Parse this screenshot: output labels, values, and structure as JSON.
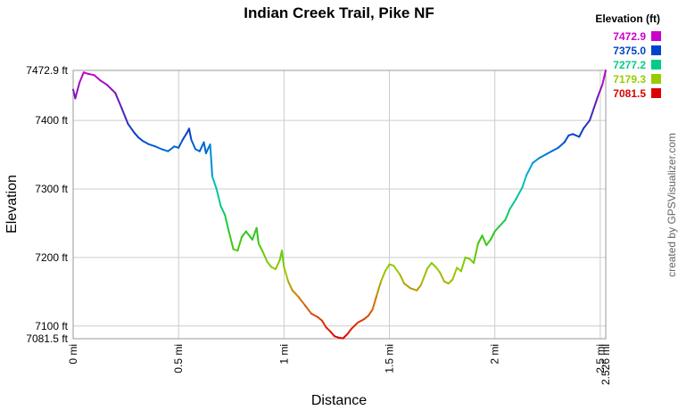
{
  "chart_data": {
    "type": "line",
    "title": "Indian Creek Trail, Pike NF",
    "xlabel": "Distance",
    "ylabel": "Elevation",
    "credit": "created by GPSVisualizer.com",
    "grid": true,
    "xlim": [
      0,
      2.526
    ],
    "ylim": [
      7081.5,
      7472.9
    ],
    "x_ticks": [
      {
        "value": 0,
        "label": "0 mi"
      },
      {
        "value": 0.5,
        "label": "0.5 mi"
      },
      {
        "value": 1,
        "label": "1 mi"
      },
      {
        "value": 1.5,
        "label": "1.5 mi"
      },
      {
        "value": 2,
        "label": "2 mi"
      },
      {
        "value": 2.5,
        "label": "2.5 mi"
      },
      {
        "value": 2.526,
        "label": "2.526 mi"
      }
    ],
    "y_ticks": [
      {
        "value": 7472.9,
        "label": "7472.9 ft"
      },
      {
        "value": 7400,
        "label": "7400 ft"
      },
      {
        "value": 7300,
        "label": "7300 ft"
      },
      {
        "value": 7200,
        "label": "7200 ft"
      },
      {
        "value": 7100,
        "label": "7100 ft"
      },
      {
        "value": 7081.5,
        "label": "7081.5 ft"
      }
    ],
    "legend": {
      "title": "Elevation (ft)",
      "position": "top-right",
      "items": [
        {
          "label": "7472.9",
          "color": "#cc00cc"
        },
        {
          "label": "7375.0",
          "color": "#0044cc"
        },
        {
          "label": "7277.2",
          "color": "#00cc88"
        },
        {
          "label": "7179.3",
          "color": "#99cc00"
        },
        {
          "label": "7081.5",
          "color": "#dd0000"
        }
      ]
    },
    "series": [
      {
        "x": [
          0,
          0.01,
          0.03,
          0.05,
          0.07,
          0.1,
          0.13,
          0.16,
          0.2,
          0.23,
          0.26,
          0.29,
          0.31,
          0.33,
          0.36,
          0.39,
          0.42,
          0.45,
          0.48,
          0.5,
          0.52,
          0.54,
          0.55,
          0.56,
          0.58,
          0.6,
          0.62,
          0.63,
          0.65,
          0.66,
          0.68,
          0.7,
          0.72,
          0.74,
          0.76,
          0.78,
          0.8,
          0.82,
          0.85,
          0.87,
          0.88,
          0.9,
          0.92,
          0.94,
          0.96,
          0.98,
          0.99,
          1.0,
          1.02,
          1.04,
          1.07,
          1.1,
          1.13,
          1.16,
          1.18,
          1.2,
          1.22,
          1.24,
          1.26,
          1.28,
          1.3,
          1.32,
          1.35,
          1.38,
          1.4,
          1.42,
          1.44,
          1.46,
          1.48,
          1.5,
          1.52,
          1.55,
          1.57,
          1.6,
          1.63,
          1.65,
          1.68,
          1.7,
          1.72,
          1.74,
          1.76,
          1.78,
          1.8,
          1.82,
          1.84,
          1.86,
          1.88,
          1.9,
          1.92,
          1.94,
          1.96,
          1.98,
          2.0,
          2.02,
          2.05,
          2.07,
          2.1,
          2.13,
          2.15,
          2.18,
          2.21,
          2.24,
          2.27,
          2.3,
          2.33,
          2.35,
          2.37,
          2.4,
          2.42,
          2.45,
          2.47,
          2.49,
          2.51,
          2.526
        ],
        "y": [
          7445,
          7432,
          7455,
          7470,
          7468,
          7466,
          7458,
          7452,
          7440,
          7418,
          7395,
          7382,
          7375,
          7370,
          7365,
          7362,
          7358,
          7355,
          7362,
          7360,
          7372,
          7382,
          7388,
          7372,
          7358,
          7355,
          7368,
          7352,
          7365,
          7318,
          7300,
          7275,
          7262,
          7236,
          7212,
          7210,
          7230,
          7238,
          7226,
          7243,
          7220,
          7208,
          7194,
          7186,
          7183,
          7196,
          7210,
          7186,
          7165,
          7152,
          7142,
          7130,
          7118,
          7113,
          7108,
          7098,
          7092,
          7085,
          7083,
          7082,
          7088,
          7096,
          7105,
          7110,
          7115,
          7124,
          7145,
          7165,
          7180,
          7190,
          7188,
          7175,
          7162,
          7155,
          7152,
          7160,
          7184,
          7192,
          7186,
          7178,
          7165,
          7162,
          7168,
          7185,
          7180,
          7200,
          7198,
          7192,
          7220,
          7232,
          7218,
          7226,
          7238,
          7245,
          7255,
          7270,
          7285,
          7302,
          7320,
          7338,
          7345,
          7350,
          7355,
          7360,
          7368,
          7378,
          7380,
          7376,
          7388,
          7400,
          7418,
          7436,
          7452,
          7472.9
        ]
      }
    ]
  }
}
